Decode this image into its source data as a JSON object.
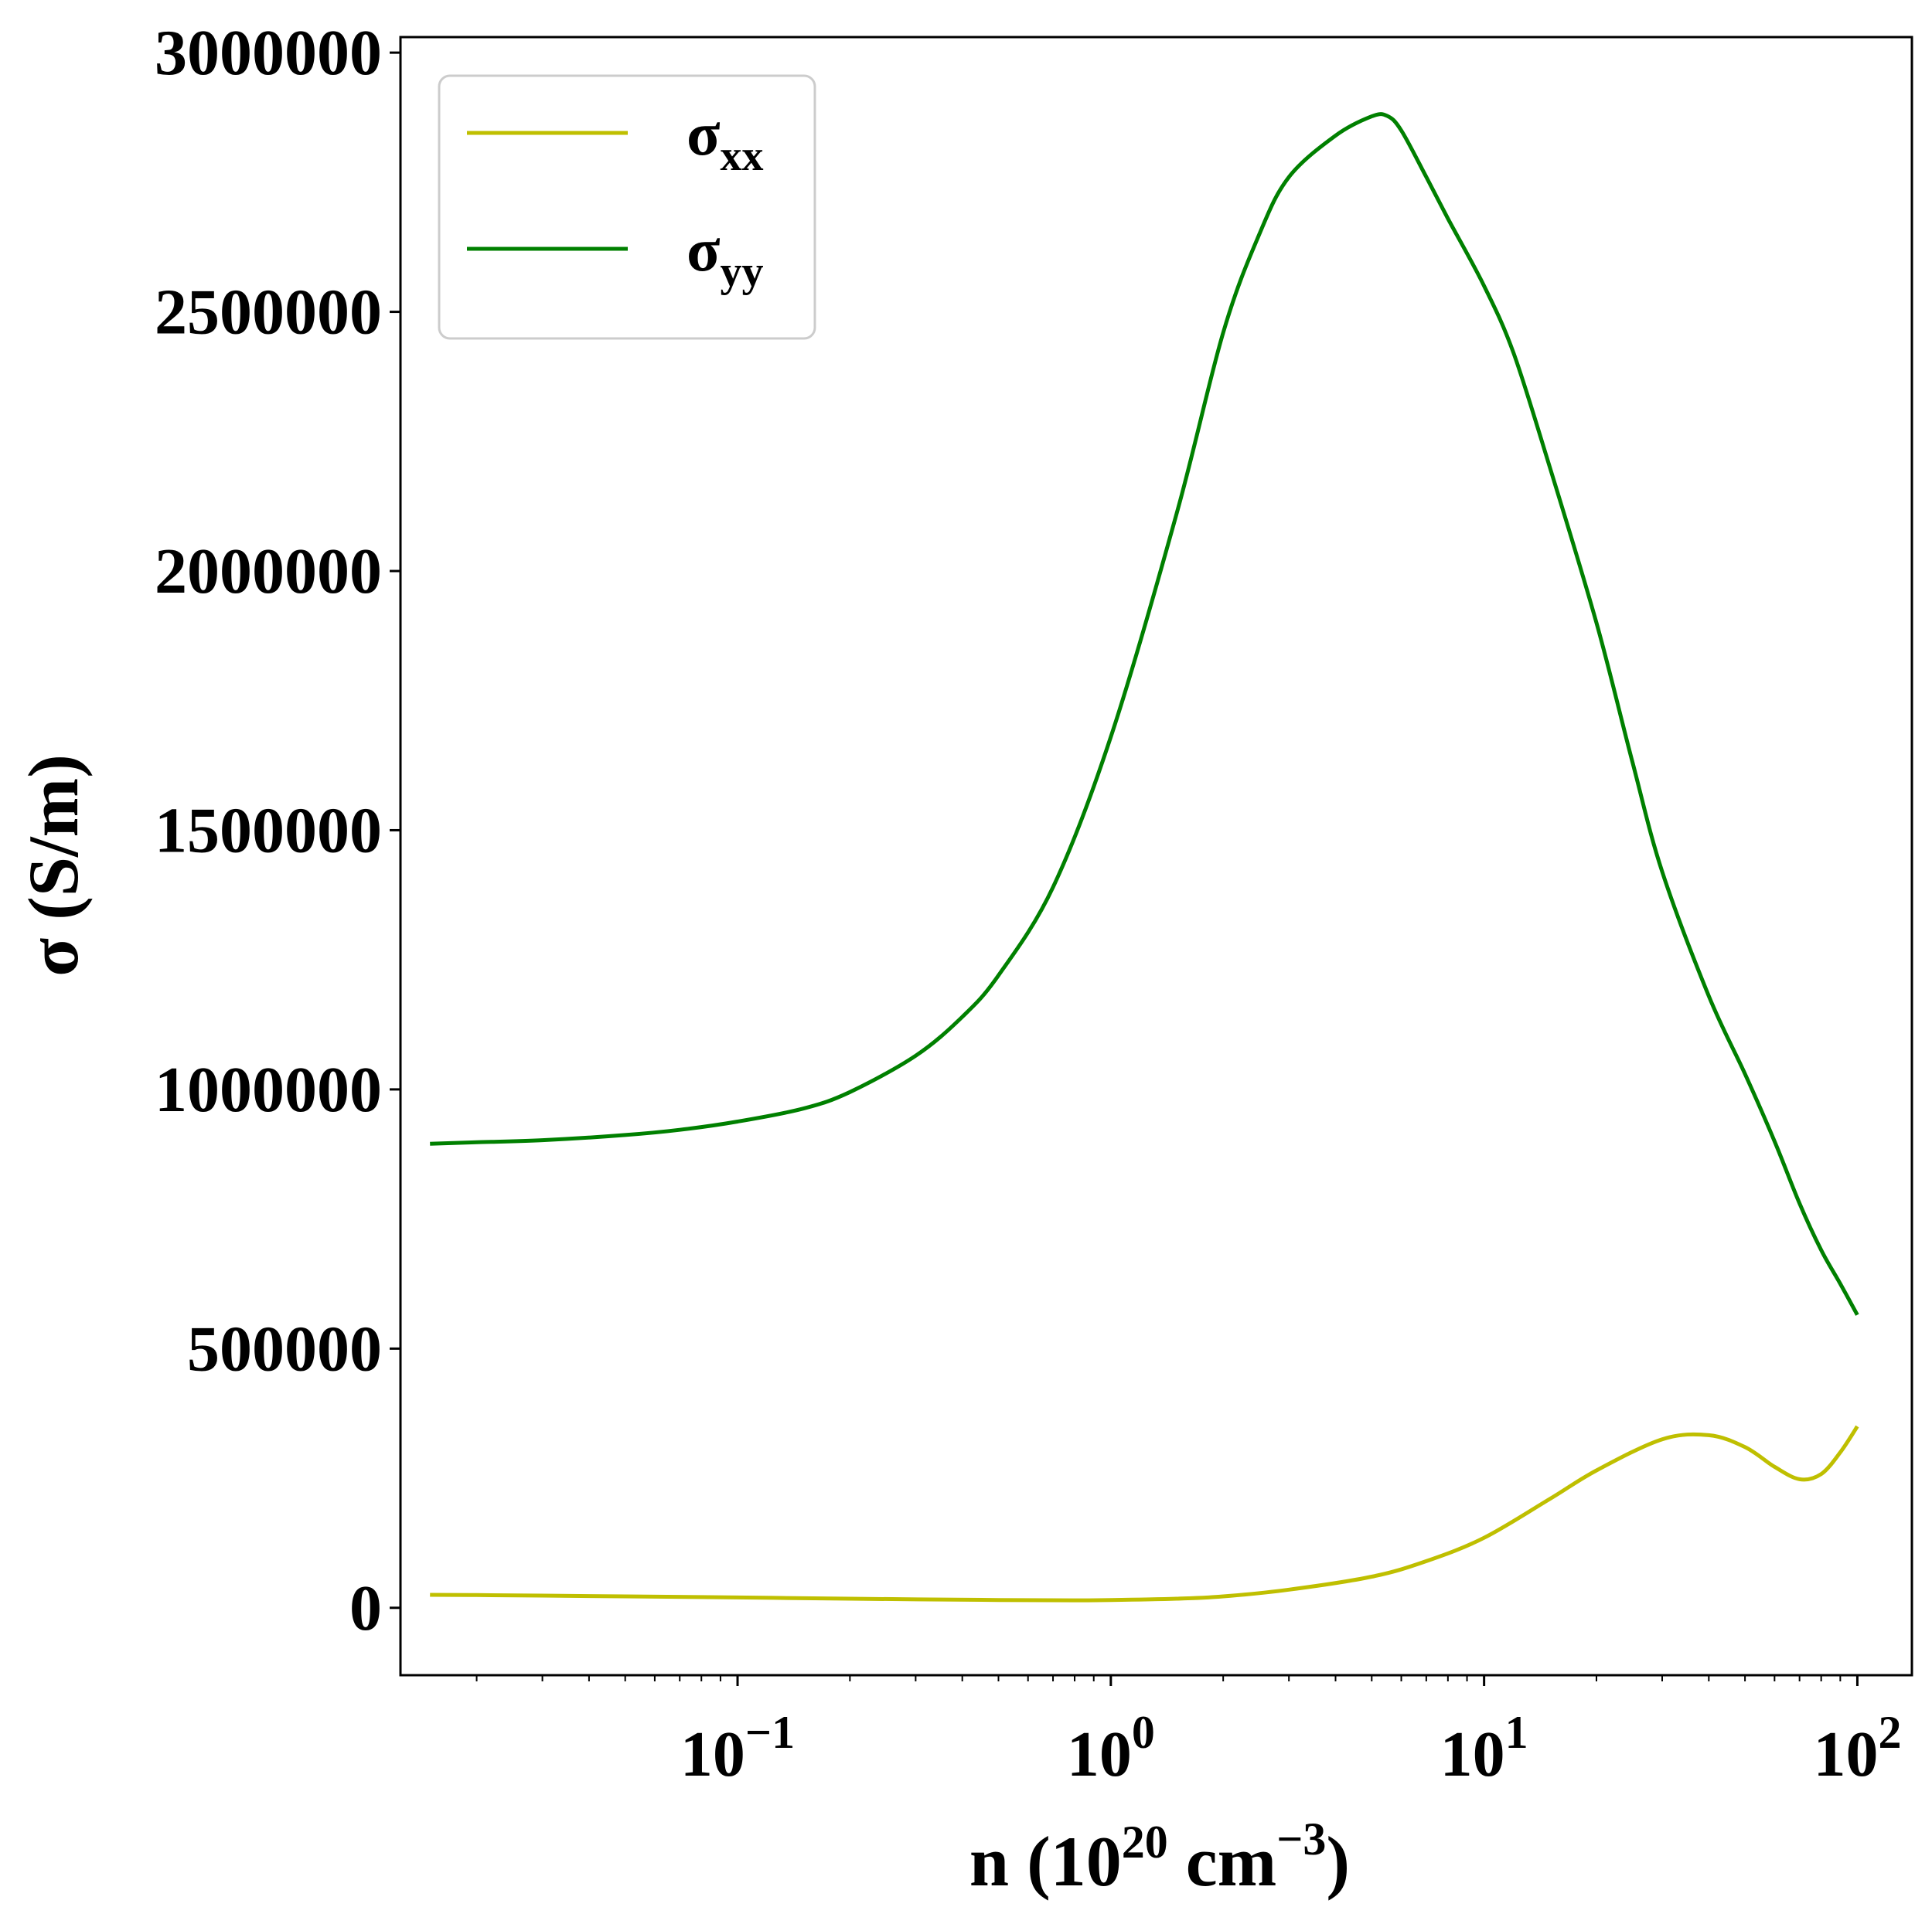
{
  "chart_data": {
    "type": "line",
    "x_scale": "log",
    "xlim": [
      0.0125,
      140
    ],
    "ylim": [
      -130000,
      3030000
    ],
    "xlabel": {
      "main": "n (10",
      "sup1": "20",
      "mid": " cm",
      "sup2": "−3",
      "end": ")"
    },
    "ylabel": "σ (S/m)",
    "x_ticks": [
      {
        "value": 0.1,
        "base": "10",
        "exp": "−1"
      },
      {
        "value": 1,
        "base": "10",
        "exp": "0"
      },
      {
        "value": 10,
        "base": "10",
        "exp": "1"
      },
      {
        "value": 100,
        "base": "10",
        "exp": "2"
      }
    ],
    "y_ticks": [
      {
        "value": 0,
        "label": "0"
      },
      {
        "value": 500000,
        "label": "500000"
      },
      {
        "value": 1000000,
        "label": "1000000"
      },
      {
        "value": 1500000,
        "label": "1500000"
      },
      {
        "value": 2000000,
        "label": "2000000"
      },
      {
        "value": 2500000,
        "label": "2500000"
      },
      {
        "value": 3000000,
        "label": "3000000"
      }
    ],
    "grid": false,
    "legend_position": "top-left",
    "series": [
      {
        "name": "σ",
        "sub": "xx",
        "color": "#bfbf00",
        "x": [
          0.015,
          0.02,
          0.03,
          0.05,
          0.1,
          0.2,
          0.5,
          0.8,
          1,
          1.5,
          2,
          3,
          5,
          7,
          10,
          15,
          20,
          30,
          40,
          50,
          60,
          70,
          80,
          90,
          100
        ],
        "y": [
          25000,
          24500,
          23500,
          22000,
          20000,
          17500,
          15000,
          14500,
          15000,
          17500,
          22000,
          35000,
          60000,
          90000,
          135000,
          210000,
          265000,
          325000,
          333000,
          310000,
          272000,
          248000,
          258000,
          300000,
          350000
        ]
      },
      {
        "name": "σ",
        "sub": "yy",
        "color": "#008000",
        "x": [
          0.015,
          0.02,
          0.03,
          0.05,
          0.07,
          0.1,
          0.15,
          0.2,
          0.3,
          0.4,
          0.5,
          0.7,
          1,
          1.5,
          2,
          2.5,
          3,
          4,
          5,
          5.5,
          6,
          7,
          8,
          10,
          12,
          15,
          20,
          25,
          30,
          40,
          50,
          60,
          70,
          80,
          90,
          100
        ],
        "y": [
          895000,
          898000,
          902000,
          912000,
          922000,
          938000,
          963000,
          995000,
          1065000,
          1140000,
          1220000,
          1390000,
          1680000,
          2110000,
          2460000,
          2650000,
          2760000,
          2840000,
          2877000,
          2878000,
          2850000,
          2760000,
          2680000,
          2550000,
          2420000,
          2200000,
          1900000,
          1630000,
          1420000,
          1180000,
          1030000,
          900000,
          780000,
          690000,
          625000,
          565000
        ]
      }
    ]
  }
}
